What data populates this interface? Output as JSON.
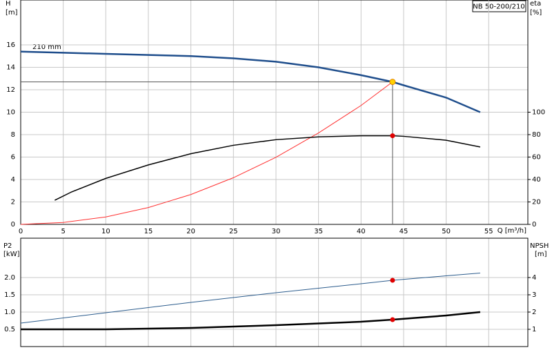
{
  "chart_data": [
    {
      "type": "line",
      "title": "NB 50-200/210",
      "annotation": "210 mm",
      "x_label": "Q [m³/h]",
      "y_label": [
        "H",
        "[m]"
      ],
      "y2_label": [
        "eta",
        "[%]"
      ],
      "xlim": [
        0,
        59.6
      ],
      "xticks": [
        0,
        5,
        10,
        15,
        20,
        25,
        30,
        35,
        40,
        45,
        50,
        55
      ],
      "ylim": [
        0,
        20
      ],
      "yticks": [
        0,
        2,
        4,
        6,
        8,
        10,
        12,
        14,
        16
      ],
      "y2lim": [
        0,
        200
      ],
      "y2ticks": [
        0,
        20,
        40,
        60,
        80,
        100
      ],
      "grid": true,
      "series": [
        {
          "color": "#1f4e8c",
          "weight": "thick",
          "x": [
            0,
            5,
            10,
            15,
            20,
            25,
            30,
            35,
            40,
            43.7,
            45,
            50,
            54
          ],
          "values": [
            15.4,
            15.3,
            15.2,
            15.1,
            15.0,
            14.8,
            14.5,
            14.0,
            13.3,
            12.7,
            12.4,
            11.3,
            10.0
          ]
        },
        {
          "color": "#ff3030",
          "weight": "thin",
          "x": [
            0,
            5,
            10,
            15,
            20,
            25,
            30,
            35,
            40,
            43.7
          ],
          "values": [
            0,
            0.17,
            0.66,
            1.5,
            2.66,
            4.16,
            5.98,
            8.15,
            10.6,
            12.7
          ]
        },
        {
          "color": "#000000",
          "weight": "medium",
          "axis": "y2",
          "x": [
            4,
            6,
            10,
            15,
            20,
            25,
            30,
            35,
            40,
            43.7,
            45,
            50,
            54
          ],
          "values": [
            21.5,
            29,
            41,
            53,
            63,
            70.5,
            75.5,
            78,
            79,
            79,
            78.5,
            75,
            69
          ]
        }
      ],
      "duty_point": {
        "x": 43.7,
        "y": 12.7,
        "color": "#ffd200"
      },
      "markers": [
        {
          "x": 43.7,
          "y": 79,
          "axis": "y2",
          "color": "#e00000"
        }
      ]
    },
    {
      "type": "line",
      "y_label": [
        "P2",
        "[kW]"
      ],
      "y2_label": [
        "NPSH",
        "[m]"
      ],
      "xlim": [
        0,
        59.6
      ],
      "ylim": [
        0,
        3.14
      ],
      "yticks": [
        0.5,
        {
          "value": 1,
          "label": "1.0"
        },
        1.5,
        {
          "value": 2,
          "label": "2.0"
        }
      ],
      "y2lim": [
        0,
        6.28
      ],
      "y2ticks": [
        1,
        2,
        3,
        4
      ],
      "grid": true,
      "series": [
        {
          "color": "#2a5b8c",
          "weight": "thin",
          "x": [
            0,
            10,
            20,
            30,
            40,
            43.7,
            50,
            54
          ],
          "values": [
            0.68,
            0.98,
            1.28,
            1.56,
            1.82,
            1.92,
            2.05,
            2.13
          ]
        },
        {
          "color": "#000000",
          "weight": "thick",
          "axis": "y2",
          "x": [
            0,
            10,
            20,
            30,
            40,
            43.7,
            50,
            54
          ],
          "values": [
            1.0,
            1.0,
            1.08,
            1.24,
            1.44,
            1.56,
            1.8,
            2.0
          ]
        }
      ],
      "markers": [
        {
          "x": 43.7,
          "y": 1.92,
          "color": "#e00000"
        },
        {
          "x": 43.7,
          "y": 1.56,
          "axis": "y2",
          "color": "#e00000"
        }
      ]
    }
  ]
}
